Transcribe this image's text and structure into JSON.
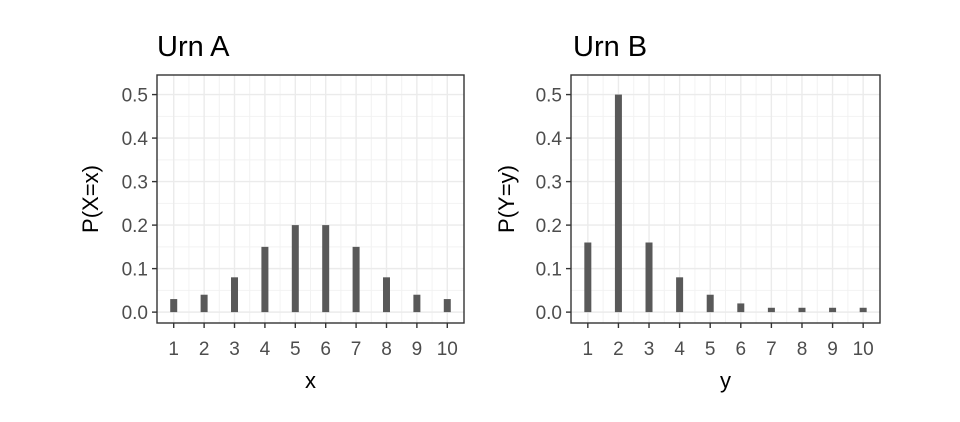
{
  "chart_data": [
    {
      "type": "bar",
      "title": "Urn A",
      "xlabel": "x",
      "ylabel": "P(X=x)",
      "categories": [
        "1",
        "2",
        "3",
        "4",
        "5",
        "6",
        "7",
        "8",
        "9",
        "10"
      ],
      "x": [
        1,
        2,
        3,
        4,
        5,
        6,
        7,
        8,
        9,
        10
      ],
      "values": [
        0.03,
        0.04,
        0.08,
        0.15,
        0.2,
        0.2,
        0.15,
        0.08,
        0.04,
        0.03
      ],
      "yticks": [
        "0.0",
        "0.1",
        "0.2",
        "0.3",
        "0.4",
        "0.5"
      ],
      "ylim": [
        -0.025,
        0.545
      ],
      "xlim": [
        0.45,
        10.55
      ],
      "grid": true,
      "bar_color": "#595959"
    },
    {
      "type": "bar",
      "title": "Urn B",
      "xlabel": "y",
      "ylabel": "P(Y=y)",
      "categories": [
        "1",
        "2",
        "3",
        "4",
        "5",
        "6",
        "7",
        "8",
        "9",
        "10"
      ],
      "x": [
        1,
        2,
        3,
        4,
        5,
        6,
        7,
        8,
        9,
        10
      ],
      "values": [
        0.16,
        0.5,
        0.16,
        0.08,
        0.04,
        0.02,
        0.01,
        0.01,
        0.01,
        0.01
      ],
      "yticks": [
        "0.0",
        "0.1",
        "0.2",
        "0.3",
        "0.4",
        "0.5"
      ],
      "ylim": [
        -0.025,
        0.545
      ],
      "xlim": [
        0.45,
        10.55
      ],
      "grid": true,
      "bar_color": "#595959"
    }
  ]
}
